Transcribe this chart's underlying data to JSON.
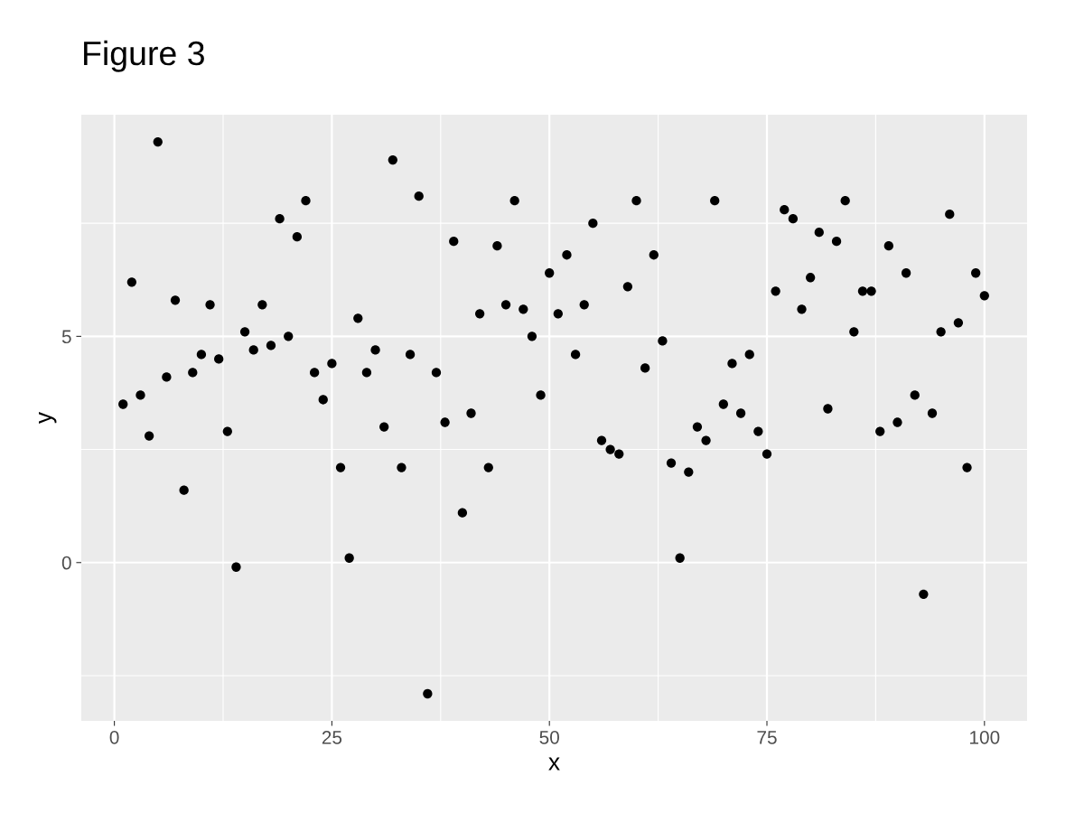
{
  "chart_data": {
    "type": "scatter",
    "title": "Figure 3",
    "xlabel": "x",
    "ylabel": "y",
    "x": [
      1,
      2,
      3,
      4,
      5,
      6,
      7,
      8,
      9,
      10,
      11,
      12,
      13,
      14,
      15,
      16,
      17,
      18,
      19,
      20,
      21,
      22,
      23,
      24,
      25,
      26,
      27,
      28,
      29,
      30,
      31,
      32,
      33,
      34,
      35,
      36,
      37,
      38,
      39,
      40,
      41,
      42,
      43,
      44,
      45,
      46,
      47,
      48,
      49,
      50,
      51,
      52,
      53,
      54,
      55,
      56,
      57,
      58,
      59,
      60,
      61,
      62,
      63,
      64,
      65,
      66,
      67,
      68,
      69,
      70,
      71,
      72,
      73,
      74,
      75,
      76,
      77,
      78,
      79,
      80,
      81,
      82,
      83,
      84,
      85,
      86,
      87,
      88,
      89,
      90,
      91,
      92,
      93,
      94,
      95,
      96,
      97,
      98,
      99,
      100
    ],
    "series": [
      {
        "color": "#000000",
        "values": [
          3.5,
          6.2,
          3.7,
          2.8,
          9.3,
          4.1,
          5.8,
          1.6,
          4.2,
          4.6,
          5.7,
          4.5,
          2.9,
          -0.1,
          5.1,
          4.7,
          5.7,
          4.8,
          7.6,
          5.0,
          7.2,
          8.0,
          4.2,
          3.6,
          4.4,
          2.1,
          0.1,
          5.4,
          4.2,
          4.7,
          3.0,
          8.9,
          2.1,
          4.6,
          8.1,
          -2.9,
          4.2,
          3.1,
          7.1,
          1.1,
          3.3,
          5.5,
          2.1,
          7.0,
          5.7,
          8.0,
          5.6,
          5.0,
          3.7,
          6.4,
          5.5,
          6.8,
          4.6,
          5.7,
          7.5,
          2.7,
          2.5,
          2.4,
          6.1,
          8.0,
          4.3,
          6.8,
          4.9,
          2.2,
          0.1,
          2.0,
          3.0,
          2.7,
          8.0,
          3.5,
          4.4,
          3.3,
          4.6,
          2.9,
          2.4,
          6.0,
          7.8,
          7.6,
          5.6,
          6.3,
          7.3,
          3.4,
          7.1,
          8.0,
          5.1,
          6.0,
          6.0,
          2.9,
          7.0,
          3.1,
          6.4,
          3.7,
          -0.7,
          3.3,
          5.1,
          7.7,
          5.3,
          2.1,
          6.4,
          5.9
        ]
      }
    ],
    "xlim": [
      -3.8,
      104.9
    ],
    "ylim": [
      -3.5,
      9.9
    ],
    "xticks": [
      0,
      {
        "value": 12.5,
        "label": null
      },
      25,
      {
        "value": 37.5,
        "label": null
      },
      50,
      {
        "value": 62.5,
        "label": null
      },
      75,
      {
        "value": 87.5,
        "label": null
      },
      100
    ],
    "yticks": [
      {
        "value": -2.5,
        "label": null
      },
      0,
      {
        "value": 2.5,
        "label": null
      },
      5,
      {
        "value": 7.5,
        "label": null
      }
    ],
    "grid": true,
    "marker": "circle"
  }
}
